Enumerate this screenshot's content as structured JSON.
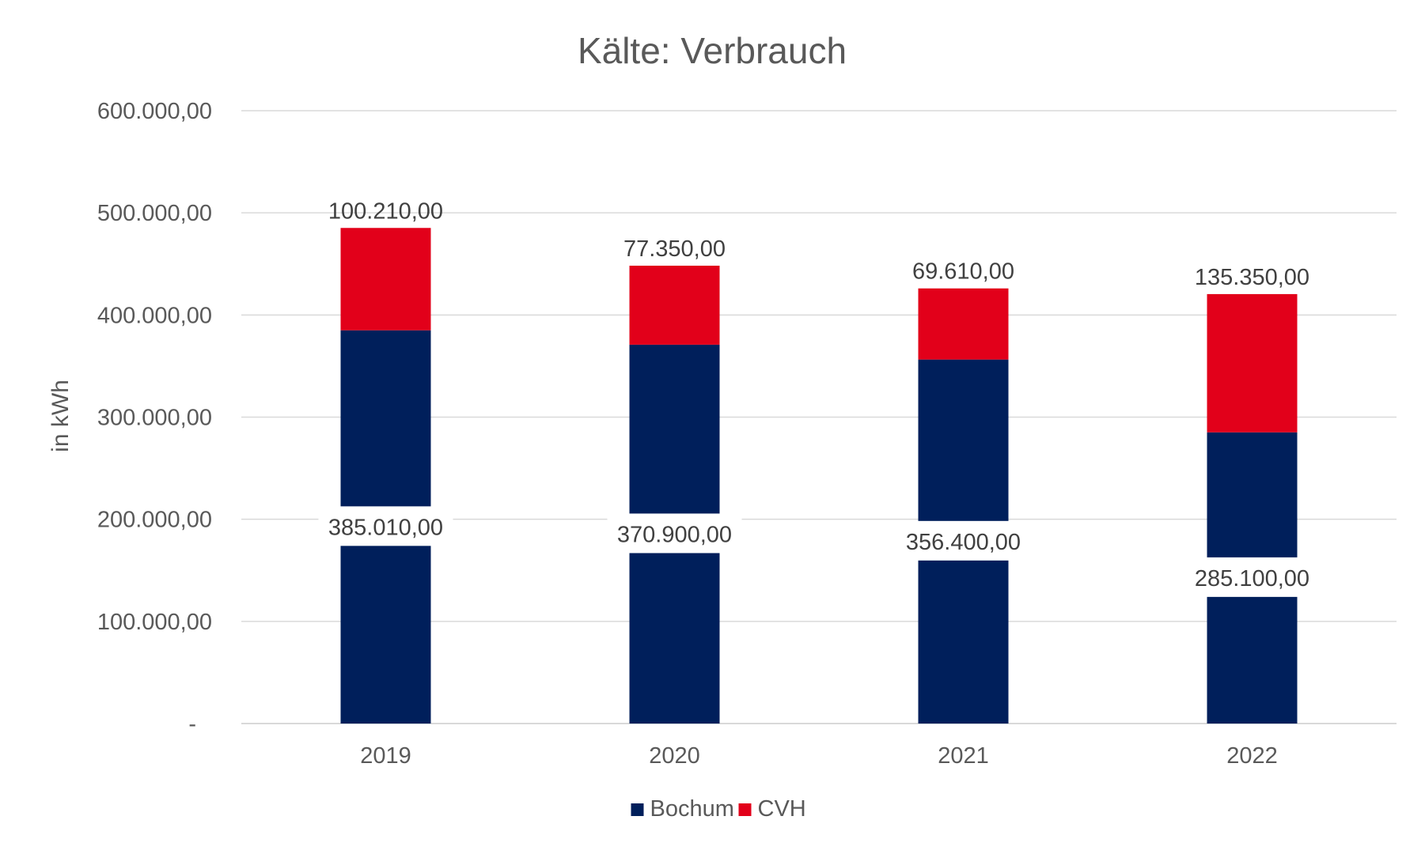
{
  "chart_data": {
    "type": "bar",
    "stacked": true,
    "title": "Kälte: Verbrauch",
    "xlabel": "",
    "ylabel": "in kWh",
    "categories": [
      "2019",
      "2020",
      "2021",
      "2022"
    ],
    "series": [
      {
        "name": "Bochum",
        "color": "#001f5b",
        "values": [
          385010,
          370900,
          356400,
          285100
        ],
        "labels": [
          "385.010,00",
          "370.900,00",
          "356.400,00",
          "285.100,00"
        ]
      },
      {
        "name": "CVH",
        "color": "#e2001a",
        "values": [
          100210,
          77350,
          69610,
          135350
        ],
        "labels": [
          "100.210,00",
          "77.350,00",
          "69.610,00",
          "135.350,00"
        ]
      }
    ],
    "ylim": [
      0,
      600000
    ],
    "yticks": [
      0,
      100000,
      200000,
      300000,
      400000,
      500000,
      600000
    ],
    "ytick_labels": [
      "-",
      "100.000,00",
      "200.000,00",
      "300.000,00",
      "400.000,00",
      "500.000,00",
      "600.000,00"
    ],
    "grid": true,
    "grid_color": "#d9d9d9",
    "legend_position": "bottom"
  }
}
